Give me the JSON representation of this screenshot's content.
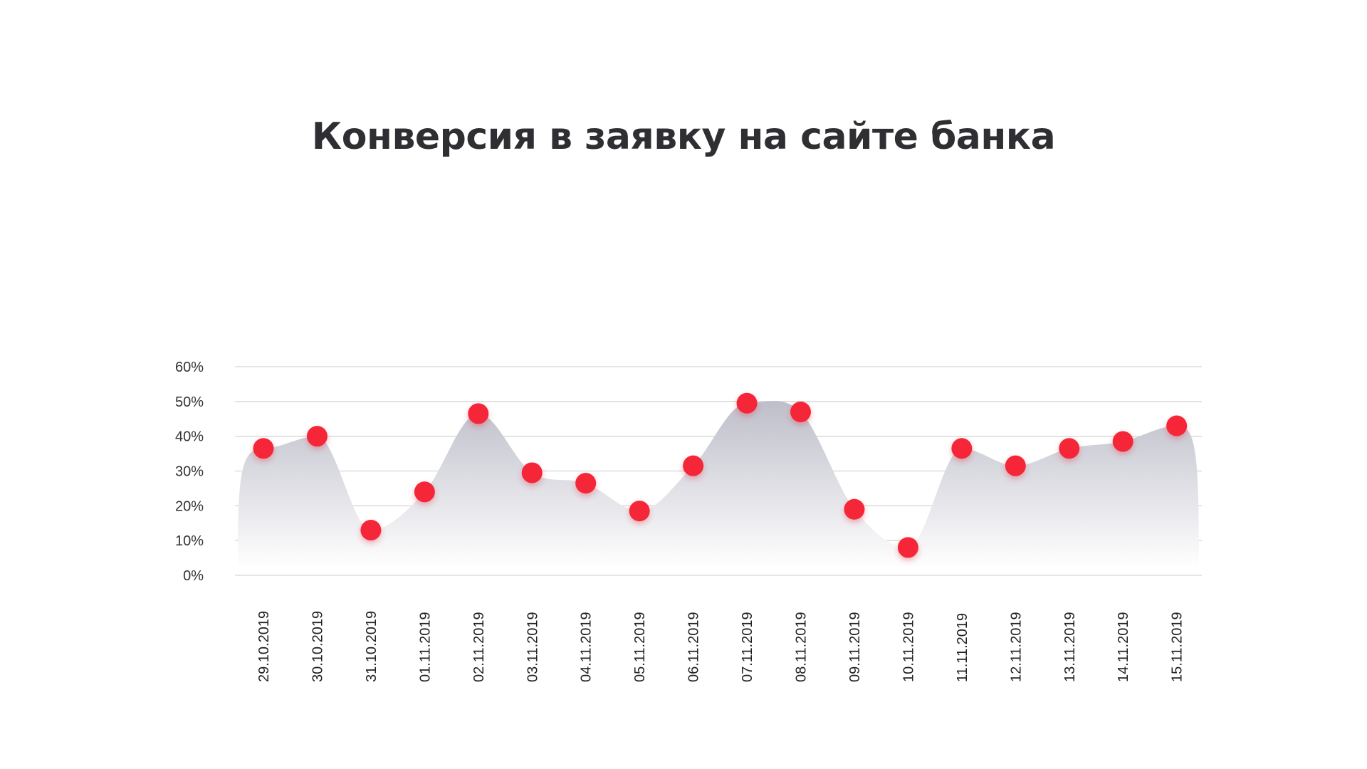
{
  "title": "Конверсия в заявку на сайте банка",
  "chart_data": {
    "type": "area",
    "title": "Конверсия в заявку на сайте банка",
    "xlabel": "",
    "ylabel": "",
    "ylim": [
      0,
      60
    ],
    "y_tick_step": 10,
    "y_tick_suffix": "%",
    "grid": true,
    "categories": [
      "29.10.2019",
      "30.10.2019",
      "31.10.2019",
      "01.11.2019",
      "02.11.2019",
      "03.11.2019",
      "04.11.2019",
      "05.11.2019",
      "06.11.2019",
      "07.11.2019",
      "08.11.2019",
      "09.11.2019",
      "10.11.2019",
      "11.11.2019",
      "12.11.2019",
      "13.11.2019",
      "14.11.2019",
      "15.11.2019"
    ],
    "values": [
      36.5,
      40,
      13,
      24,
      46.5,
      29.5,
      26.5,
      18.5,
      31.5,
      49.5,
      47,
      19,
      8,
      36.5,
      31.5,
      36.5,
      38.5,
      43
    ],
    "colors": {
      "marker": "#f52537",
      "area_top": "#bebeca",
      "area_bottom": "#ffffff",
      "grid": "#d6d6d6"
    }
  }
}
